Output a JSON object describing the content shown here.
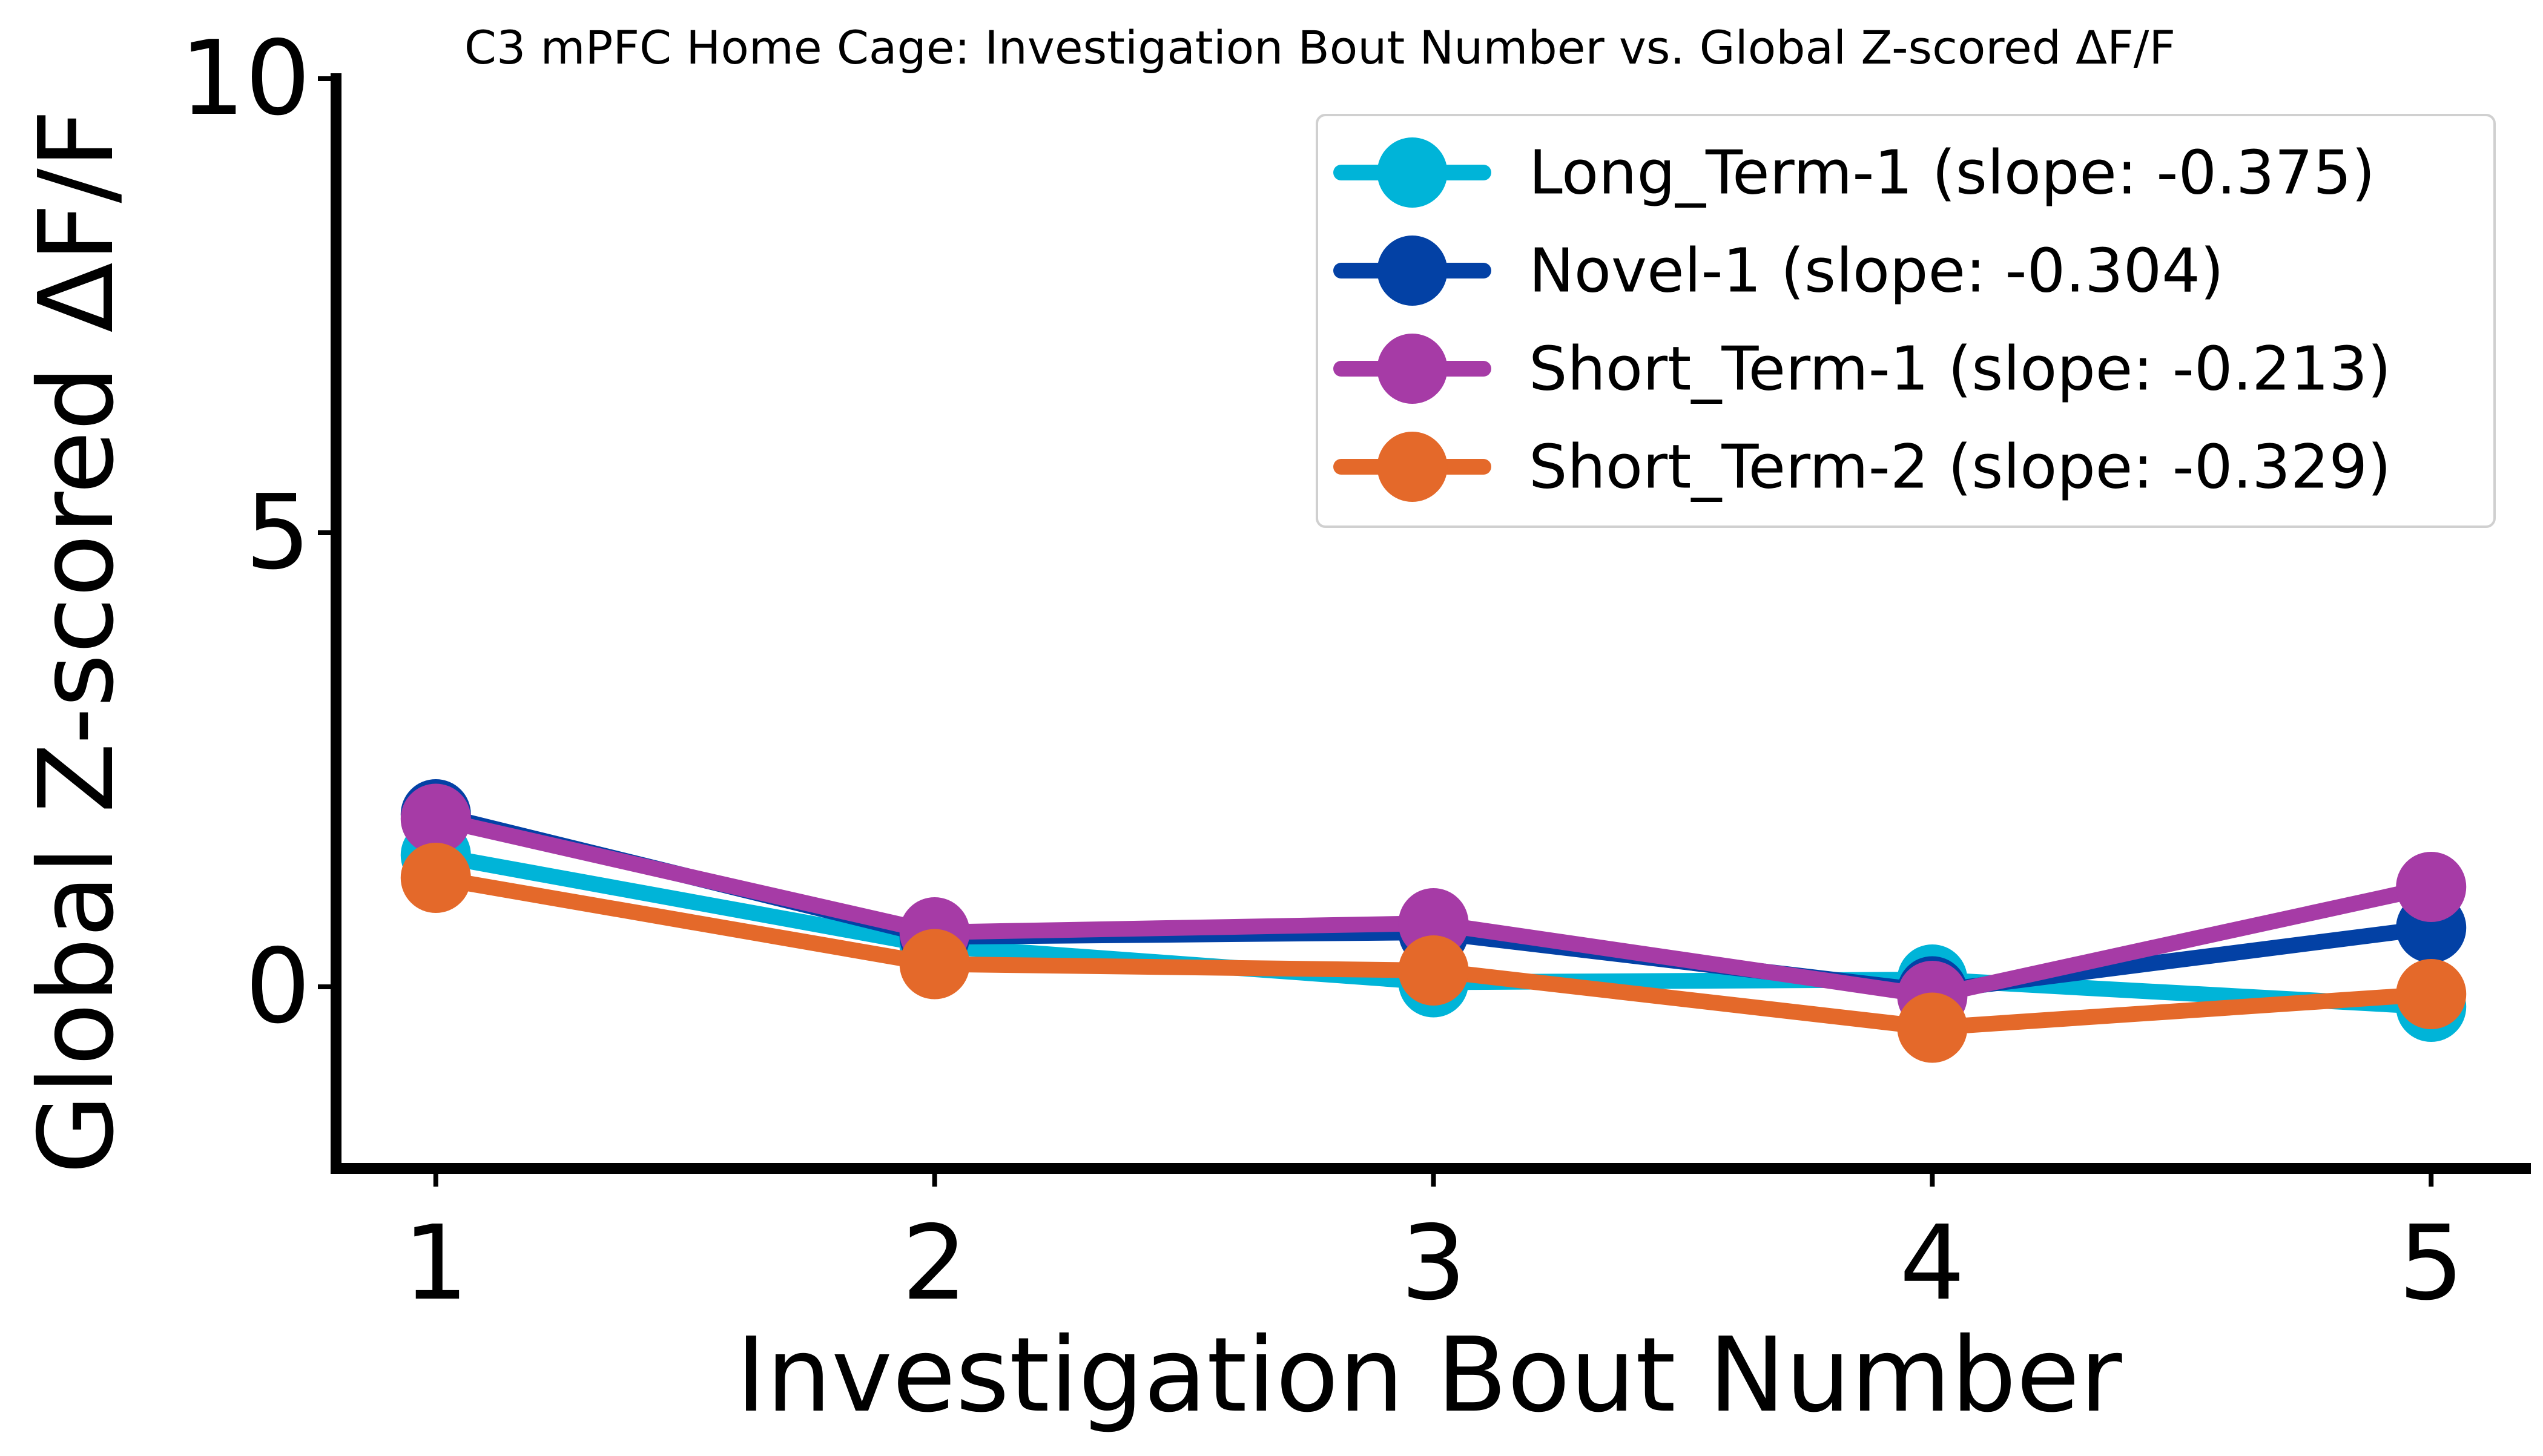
{
  "chart_data": {
    "type": "line",
    "title": "C3 mPFC Home Cage: Investigation Bout Number vs. Global Z-scored ΔF/F",
    "xlabel": "Investigation Bout Number",
    "ylabel": "Global Z-scored ΔF/F",
    "x": [
      1,
      2,
      3,
      4,
      5
    ],
    "xticks": [
      1,
      2,
      3,
      4,
      5
    ],
    "yticks": [
      0,
      5,
      10
    ],
    "xlim": [
      0.8,
      5.2
    ],
    "ylim": [
      -2,
      10
    ],
    "grid": false,
    "legend_position": "top-right",
    "series": [
      {
        "name": "Long_Term-1 (slope: -0.375)",
        "color": "#00b4d8",
        "values": [
          1.45,
          0.45,
          0.05,
          0.08,
          -0.22
        ]
      },
      {
        "name": "Novel-1 (slope: -0.304)",
        "color": "#0341a5",
        "values": [
          1.9,
          0.55,
          0.6,
          -0.05,
          0.65
        ]
      },
      {
        "name": "Short_Term-1 (slope: -0.213)",
        "color": "#a63ba6",
        "values": [
          1.85,
          0.6,
          0.7,
          -0.1,
          1.1
        ]
      },
      {
        "name": "Short_Term-2 (slope: -0.329)",
        "color": "#e4692a",
        "values": [
          1.2,
          0.25,
          0.18,
          -0.45,
          -0.08
        ]
      }
    ]
  }
}
